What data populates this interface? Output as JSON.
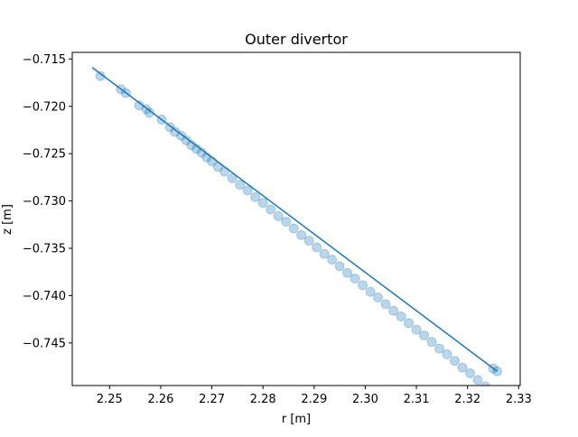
{
  "chart_data": {
    "type": "scatter",
    "title": "Outer divertor",
    "xlabel": "r [m]",
    "ylabel": "z [m]",
    "xlim": [
      2.2427,
      2.3303
    ],
    "ylim": [
      -0.7495,
      -0.7143
    ],
    "xticks": [
      2.25,
      2.26,
      2.27,
      2.28,
      2.29,
      2.3,
      2.31,
      2.32,
      2.33
    ],
    "xtick_labels": [
      "2.25",
      "2.26",
      "2.27",
      "2.28",
      "2.29",
      "2.30",
      "2.31",
      "2.32",
      "2.33"
    ],
    "yticks": [
      -0.715,
      -0.72,
      -0.725,
      -0.73,
      -0.735,
      -0.74,
      -0.745
    ],
    "ytick_labels": [
      "−0.715",
      "−0.720",
      "−0.725",
      "−0.730",
      "−0.735",
      "−0.740",
      "−0.745"
    ],
    "grid": false,
    "series": [
      {
        "kind": "scatter",
        "color": "#1f77b4",
        "alpha": 0.3,
        "x": [
          2.2482,
          2.2522,
          2.2532,
          2.2558,
          2.2572,
          2.2578,
          2.2602,
          2.2618,
          2.2628,
          2.264,
          2.265,
          2.266,
          2.267,
          2.268,
          2.269,
          2.27,
          2.2712,
          2.2725,
          2.274,
          2.2755,
          2.277,
          2.2785,
          2.28,
          2.2815,
          2.283,
          2.2845,
          2.286,
          2.2875,
          2.289,
          2.2905,
          2.292,
          2.2935,
          2.295,
          2.2965,
          2.298,
          2.2995,
          2.301,
          2.3025,
          2.304,
          2.3055,
          2.307,
          2.3085,
          2.31,
          2.3115,
          2.313,
          2.3145,
          2.316,
          2.3175,
          2.319,
          2.3205,
          2.322,
          2.3235,
          2.325,
          2.3258
        ],
        "y": [
          -0.7168,
          -0.7182,
          -0.7186,
          -0.7199,
          -0.7203,
          -0.7207,
          -0.7214,
          -0.7222,
          -0.7227,
          -0.7231,
          -0.7236,
          -0.7241,
          -0.7245,
          -0.7249,
          -0.7254,
          -0.7258,
          -0.7264,
          -0.7269,
          -0.7276,
          -0.7283,
          -0.7289,
          -0.7296,
          -0.7302,
          -0.7309,
          -0.7316,
          -0.7322,
          -0.7329,
          -0.7336,
          -0.7342,
          -0.7349,
          -0.7356,
          -0.7362,
          -0.7369,
          -0.7376,
          -0.7382,
          -0.7389,
          -0.7396,
          -0.7402,
          -0.7409,
          -0.7416,
          -0.7422,
          -0.7429,
          -0.7436,
          -0.7442,
          -0.7449,
          -0.7456,
          -0.7462,
          -0.7469,
          -0.7476,
          -0.7482,
          -0.7489,
          -0.7496,
          -0.7477,
          -0.748
        ]
      },
      {
        "kind": "line",
        "color": "#1f77b4",
        "x": [
          2.2466,
          2.3258
        ],
        "y": [
          -0.7159,
          -0.748
        ]
      }
    ]
  }
}
